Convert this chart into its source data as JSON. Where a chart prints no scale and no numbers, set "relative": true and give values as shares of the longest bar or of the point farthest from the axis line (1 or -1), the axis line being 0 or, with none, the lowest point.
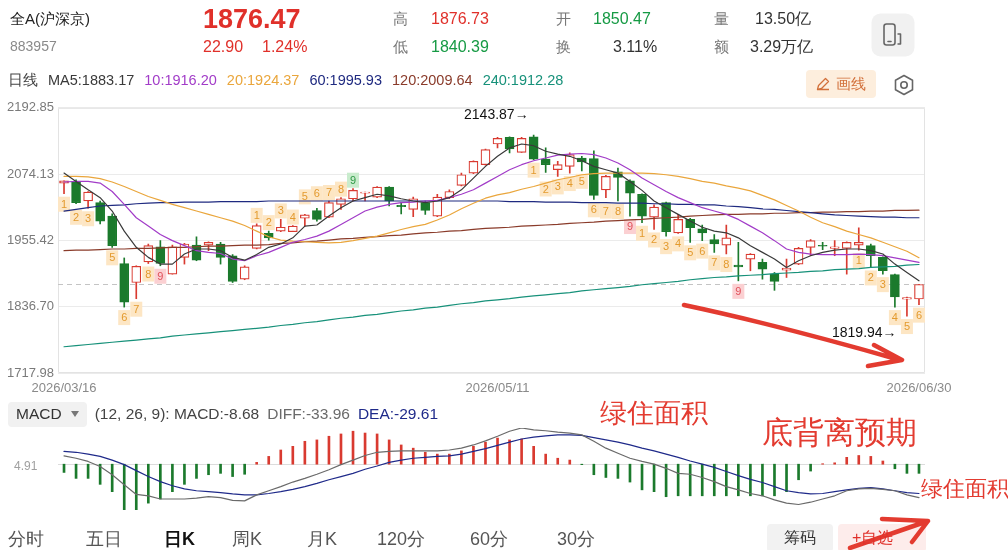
{
  "chart_data": [
    {
      "type": "other",
      "title": "全A(沪深京)",
      "subtitle": "883957",
      "annotations": [
        "1876.47",
        "22.90",
        "1.24%",
        "高",
        "1876.73",
        "低",
        "1840.39",
        "开",
        "1850.47",
        "换",
        "3.11%",
        "量",
        "13.50亿",
        "额",
        "3.29万亿",
        "画线"
      ]
    },
    {
      "type": "candlestick",
      "categories": [
        "2026/03/16",
        null,
        null,
        null,
        null,
        null,
        null,
        null,
        null,
        null,
        null,
        null,
        null,
        null,
        null,
        null,
        null,
        null,
        null,
        null,
        null,
        null,
        null,
        null,
        null,
        null,
        null,
        null,
        null,
        null,
        null,
        null,
        null,
        null,
        null,
        null,
        "2026/05/11",
        null,
        null,
        null,
        null,
        null,
        null,
        null,
        null,
        null,
        null,
        null,
        null,
        null,
        null,
        null,
        null,
        null,
        null,
        null,
        null,
        null,
        null,
        null,
        null,
        null,
        null,
        null,
        null,
        null,
        null,
        null,
        null,
        null,
        null,
        "2026/06/30"
      ],
      "ohlc": [
        [
          2058,
          2062,
          2039,
          2062
        ],
        [
          2061,
          2064,
          2021,
          2023
        ],
        [
          2026,
          2043,
          2013,
          2042
        ],
        [
          2023,
          2026,
          1985,
          1990
        ],
        [
          1999,
          2003,
          1943,
          1946
        ],
        [
          1914,
          1924,
          1836,
          1845
        ],
        [
          1880,
          1910,
          1851,
          1909
        ],
        [
          1917,
          1949,
          1914,
          1946
        ],
        [
          1944,
          1955,
          1910,
          1914
        ],
        [
          1895,
          1947,
          1895,
          1944
        ],
        [
          1925,
          1950,
          1913,
          1949
        ],
        [
          1947,
          1962,
          1919,
          1920
        ],
        [
          1947,
          1953,
          1937,
          1952
        ],
        [
          1949,
          1952,
          1913,
          1925
        ],
        [
          1928,
          1930,
          1880,
          1882
        ],
        [
          1886,
          1910,
          1885,
          1908
        ],
        [
          1941,
          1985,
          1940,
          1982
        ],
        [
          1968,
          1972,
          1956,
          1960
        ],
        [
          1972,
          1993,
          1971,
          1979
        ],
        [
          1971,
          1982,
          1971,
          1981
        ],
        [
          1995,
          2002,
          1981,
          2001
        ],
        [
          2009,
          2013,
          1990,
          1993
        ],
        [
          1997,
          2026,
          1996,
          2023
        ],
        [
          2020,
          2032,
          2011,
          2030
        ],
        [
          2030,
          2048,
          2026,
          2045
        ],
        [
          2040,
          2042,
          2026,
          2042
        ],
        [
          2033,
          2052,
          2032,
          2051
        ],
        [
          2051,
          2052,
          2017,
          2026
        ],
        [
          2018,
          2023,
          2003,
          2016
        ],
        [
          2011,
          2033,
          1998,
          2030
        ],
        [
          2023,
          2026,
          2002,
          2009
        ],
        [
          1999,
          2038,
          1998,
          2033
        ],
        [
          2032,
          2046,
          2030,
          2043
        ],
        [
          2054,
          2076,
          2053,
          2073
        ],
        [
          2076,
          2098,
          2075,
          2097
        ],
        [
          2091,
          2119,
          2090,
          2118
        ],
        [
          2128,
          2140,
          2121,
          2138
        ],
        [
          2140,
          2141,
          2112,
          2119
        ],
        [
          2113,
          2140,
          2113,
          2138
        ],
        [
          2141,
          2143.87,
          2100,
          2101
        ],
        [
          2101,
          2121,
          2077,
          2091
        ],
        [
          2082,
          2097,
          2070,
          2091
        ],
        [
          2088,
          2112,
          2076,
          2109
        ],
        [
          2103,
          2106,
          2080,
          2096
        ],
        [
          2102,
          2116,
          2029,
          2036
        ],
        [
          2046,
          2072,
          2032,
          2070
        ],
        [
          2078,
          2085,
          2026,
          2068
        ],
        [
          2062,
          2064,
          1999,
          2040
        ],
        [
          2038,
          2039,
          1987,
          1999
        ],
        [
          1997,
          2019,
          1975,
          2015
        ],
        [
          2023,
          2024,
          1963,
          1971
        ],
        [
          1969,
          2002,
          1968,
          1993
        ],
        [
          1993,
          1995,
          1952,
          1978
        ],
        [
          1976,
          1983,
          1955,
          1969
        ],
        [
          1957,
          1966,
          1934,
          1949
        ],
        [
          1947,
          1983,
          1931,
          1960
        ],
        [
          1911,
          1952,
          1883,
          1908
        ],
        [
          1922,
          1932,
          1901,
          1931
        ],
        [
          1916,
          1922,
          1886,
          1904
        ],
        [
          1895,
          1898,
          1866,
          1882
        ],
        [
          1902,
          1922,
          1889,
          1906
        ],
        [
          1913,
          1943,
          1912,
          1941
        ],
        [
          1943,
          1957,
          1928,
          1955
        ],
        [
          1946,
          1952,
          1939,
          1945
        ],
        [
          1941,
          1955,
          1928,
          1944
        ],
        [
          1941,
          1953,
          1895,
          1952
        ],
        [
          1947,
          1978,
          1938,
          1952
        ],
        [
          1946,
          1949,
          1907,
          1928
        ],
        [
          1925,
          1926,
          1895,
          1901
        ],
        [
          1894,
          1895,
          1836,
          1854
        ],
        [
          1850,
          1854,
          1819.94,
          1853
        ],
        [
          1850.47,
          1876.73,
          1840.39,
          1876.47
        ]
      ],
      "value_labels": [
        "1",
        "2",
        "3",
        null,
        "5",
        "6",
        "7",
        "8",
        "9",
        null,
        null,
        null,
        null,
        null,
        null,
        null,
        "1",
        "2",
        "3",
        "4",
        "5",
        "6",
        "7",
        "8",
        "9",
        null,
        null,
        null,
        null,
        null,
        null,
        null,
        null,
        null,
        null,
        null,
        null,
        null,
        null,
        "1",
        "2",
        "3",
        "4",
        "5",
        "6",
        "7",
        "8",
        "9",
        "1",
        "2",
        "3",
        "4",
        "5",
        "6",
        "7",
        "8",
        "9",
        null,
        null,
        null,
        null,
        null,
        null,
        null,
        null,
        null,
        "1",
        "2",
        "3",
        "4",
        "5",
        "6"
      ],
      "series": [
        {
          "name": "MA5:1883.17",
          "type": "line",
          "color": "#3a3a3a",
          "values": [
            2076,
            2061,
            2046,
            2032,
            2008,
            1972,
            1943,
            1925,
            1913,
            1913,
            1931,
            1940,
            1940,
            1937,
            1925,
            1920,
            1930,
            1943,
            1949,
            1960,
            1981,
            1983,
            1999,
            2014,
            2026,
            2032,
            2038,
            2035,
            2030,
            2026,
            2023,
            2026,
            2032,
            2046,
            2067,
            2088,
            2106,
            2121,
            2128,
            2125,
            2115,
            2110,
            2106,
            2098,
            2088,
            2082,
            2076,
            2061,
            2045,
            2026,
            2014,
            2002,
            1990,
            1979,
            1972,
            1969,
            1960,
            1946,
            1934,
            1922,
            1907,
            1919,
            1928,
            1934,
            1938,
            1940,
            1940,
            1937,
            1931,
            1913,
            1898,
            1883.17
          ]
        },
        {
          "name": "10:1916.20",
          "type": "line",
          "color": "#a23cc8",
          "values": [
            2060,
            2061,
            2061,
            2058,
            2043,
            2020,
            1996,
            1981,
            1966,
            1955,
            1946,
            1937,
            1934,
            1932,
            1922,
            1919,
            1928,
            1934,
            1943,
            1952,
            1957,
            1963,
            1972,
            1984,
            1996,
            2008,
            2015,
            2020,
            2023,
            2024,
            2026,
            2027,
            2032,
            2038,
            2046,
            2058,
            2070,
            2082,
            2091,
            2098,
            2103,
            2108,
            2110,
            2111,
            2109,
            2103,
            2094,
            2082,
            2067,
            2055,
            2043,
            2032,
            2023,
            2014,
            2008,
            2002,
            1993,
            1981,
            1969,
            1955,
            1940,
            1934,
            1931,
            1930,
            1930,
            1930,
            1931,
            1930,
            1928,
            1924,
            1920,
            1916.2
          ]
        },
        {
          "name": "20:1924.37",
          "type": "line",
          "color": "#eaa63c",
          "values": [
            2070,
            2070,
            2069,
            2066,
            2060,
            2052,
            2043,
            2034,
            2027,
            2020,
            2014,
            2008,
            2002,
            1996,
            1990,
            1982,
            1972,
            1962,
            1956,
            1954,
            1953,
            1952,
            1951,
            1952,
            1955,
            1959,
            1963,
            1969,
            1975,
            1980,
            1984,
            1992,
            2001,
            2012,
            2022,
            2031,
            2037,
            2041,
            2047,
            2052,
            2058,
            2064,
            2068,
            2073,
            2075,
            2076,
            2076,
            2076,
            2076,
            2075,
            2073,
            2070,
            2066,
            2061,
            2058,
            2053,
            2049,
            2044,
            2036,
            2028,
            2018,
            2008,
            1997,
            1987,
            1980,
            1972,
            1966,
            1960,
            1952,
            1944,
            1936,
            1924.37
          ]
        },
        {
          "name": "60:1995.93",
          "type": "line",
          "color": "#1f2a80",
          "values": [
            2008,
            2011,
            2014,
            2017,
            2018,
            2019,
            2021,
            2022,
            2023,
            2023,
            2024,
            2024,
            2024,
            2025,
            2025,
            2025,
            2025,
            2026,
            2026,
            2026,
            2026,
            2026,
            2026,
            2026,
            2026,
            2026,
            2026,
            2026,
            2026,
            2026,
            2026,
            2026,
            2026,
            2026,
            2026,
            2026,
            2026,
            2025,
            2025,
            2025,
            2024,
            2024,
            2024,
            2023,
            2023,
            2023,
            2022,
            2022,
            2022,
            2021,
            2021,
            2020,
            2020,
            2019,
            2019,
            2017,
            2016,
            2014,
            2012,
            2011,
            2009,
            2007,
            2005,
            2003,
            2001,
            2000,
            1999,
            1998,
            1997,
            1997,
            1996,
            1995.93
          ]
        },
        {
          "name": "120:2009.64",
          "type": "line",
          "color": "#8a3b2a",
          "values": [
            1937,
            1938,
            1938,
            1939,
            1940,
            1940,
            1941,
            1941,
            1942,
            1943,
            1943,
            1944,
            1945,
            1945,
            1946,
            1947,
            1947,
            1948,
            1950,
            1951,
            1953,
            1954,
            1956,
            1958,
            1959,
            1961,
            1962,
            1964,
            1965,
            1967,
            1969,
            1970,
            1972,
            1973,
            1975,
            1977,
            1978,
            1979,
            1981,
            1982,
            1983,
            1984,
            1986,
            1987,
            1988,
            1990,
            1991,
            1992,
            1993,
            1995,
            1996,
            1997,
            1999,
            2000,
            2001,
            2002,
            2002,
            2003,
            2003,
            2004,
            2004,
            2005,
            2005,
            2006,
            2006,
            2007,
            2007,
            2008,
            2008,
            2009,
            2009,
            2009.64
          ]
        },
        {
          "name": "240:1912.28",
          "type": "line",
          "color": "#17917a",
          "values": [
            1765,
            1767,
            1769,
            1771,
            1773,
            1775,
            1777,
            1779,
            1781,
            1784,
            1786,
            1788,
            1790,
            1792,
            1794,
            1796,
            1798,
            1800,
            1803,
            1805,
            1808,
            1810,
            1813,
            1816,
            1818,
            1821,
            1823,
            1826,
            1829,
            1831,
            1834,
            1836,
            1839,
            1842,
            1844,
            1847,
            1849,
            1851,
            1854,
            1856,
            1858,
            1860,
            1862,
            1865,
            1867,
            1869,
            1871,
            1873,
            1876,
            1878,
            1880,
            1882,
            1885,
            1887,
            1889,
            1890,
            1892,
            1893,
            1894,
            1896,
            1897,
            1898,
            1900,
            1901,
            1903,
            1904,
            1905,
            1907,
            1908,
            1909,
            1911,
            1912.28
          ]
        }
      ],
      "legend": "top left",
      "legend_title": "日线",
      "ylim": [
        1717.98,
        2192.85
      ],
      "yticks": [
        1717.98,
        {
          "value": 1836.7,
          "label": "1836.70"
        },
        1955.42,
        2074.13,
        2192.85
      ],
      "grid": "y",
      "ref_lines": [
        {
          "axis": "y",
          "value": 1876.47,
          "line_style": "dashed",
          "color": "#c4c4c4"
        }
      ],
      "annotations": [
        {
          "text": "2143.87→",
          "y": 2143.87
        },
        "1819.94→"
      ]
    },
    {
      "type": "bar",
      "title": "MACD",
      "legend_title": "(12, 26, 9): MACD:-8.68",
      "legend": "top left",
      "relative": true,
      "categories": [
        null,
        null,
        null,
        null,
        null,
        null,
        null,
        null,
        null,
        null,
        null,
        null,
        null,
        null,
        null,
        null,
        null,
        null,
        null,
        null,
        null,
        null,
        null,
        null,
        null,
        null,
        null,
        null,
        null,
        null,
        null,
        null,
        null,
        null,
        null,
        null,
        null,
        null,
        null,
        null,
        null,
        null,
        null,
        null,
        null,
        null,
        null,
        null,
        null,
        null,
        null,
        null,
        null,
        null,
        null,
        null,
        null,
        null,
        null,
        null,
        null,
        null,
        null,
        null,
        null,
        null,
        null,
        null,
        null,
        null,
        null,
        null
      ],
      "series": [
        {
          "type": "bar",
          "values": [
            -0.18,
            -0.31,
            -0.31,
            -0.44,
            -0.6,
            -1,
            -1,
            -0.85,
            -0.76,
            -0.6,
            -0.44,
            -0.31,
            -0.23,
            -0.2,
            -0.27,
            -0.22,
            0.04,
            0.17,
            0.31,
            0.39,
            0.5,
            0.53,
            0.61,
            0.66,
            0.72,
            0.68,
            0.66,
            0.53,
            0.42,
            0.35,
            0.26,
            0.22,
            0.22,
            0.29,
            0.39,
            0.48,
            0.57,
            0.53,
            0.55,
            0.39,
            0.22,
            0.13,
            0.09,
            -0.01,
            -0.23,
            -0.29,
            -0.31,
            -0.39,
            -0.56,
            -0.6,
            -0.71,
            -0.69,
            -0.69,
            -0.69,
            -0.69,
            -0.69,
            -0.69,
            -0.69,
            -0.69,
            -0.69,
            -0.6,
            -0.34,
            -0.15,
            0.01,
            0.03,
            0.15,
            0.19,
            0.17,
            0.07,
            -0.1,
            -0.2,
            -0.2
          ],
          "colors": [
            "#1b7a2c",
            "#1b7a2c",
            "#1b7a2c",
            "#1b7a2c",
            "#1b7a2c",
            "#1b7a2c",
            "#1b7a2c",
            "#1b7a2c",
            "#1b7a2c",
            "#1b7a2c",
            "#1b7a2c",
            "#1b7a2c",
            "#1b7a2c",
            "#1b7a2c",
            "#1b7a2c",
            "#1b7a2c",
            "#d93a30",
            "#d93a30",
            "#d93a30",
            "#d93a30",
            "#d93a30",
            "#d93a30",
            "#d93a30",
            "#d93a30",
            "#d93a30",
            "#d93a30",
            "#d93a30",
            "#d93a30",
            "#d93a30",
            "#d93a30",
            "#d93a30",
            "#d93a30",
            "#d93a30",
            "#d93a30",
            "#d93a30",
            "#d93a30",
            "#d93a30",
            "#d93a30",
            "#d93a30",
            "#d93a30",
            "#d93a30",
            "#d93a30",
            "#d93a30",
            "#1b7a2c",
            "#1b7a2c",
            "#1b7a2c",
            "#1b7a2c",
            "#1b7a2c",
            "#1b7a2c",
            "#1b7a2c",
            "#1b7a2c",
            "#1b7a2c",
            "#1b7a2c",
            "#1b7a2c",
            "#1b7a2c",
            "#1b7a2c",
            "#1b7a2c",
            "#1b7a2c",
            "#1b7a2c",
            "#1b7a2c",
            "#1b7a2c",
            "#1b7a2c",
            "#1b7a2c",
            "#d93a30",
            "#d93a30",
            "#d93a30",
            "#d93a30",
            "#d93a30",
            "#d93a30",
            "#1b7a2c",
            "#1b7a2c",
            "#1b7a2c"
          ]
        },
        {
          "name": "DIFF:-33.96",
          "type": "line",
          "color": "#6a6a6a",
          "values": [
            0.18,
            0.13,
            0.06,
            -0.05,
            -0.23,
            -0.45,
            -0.66,
            -0.69,
            -0.76,
            -0.76,
            -0.76,
            -0.74,
            -0.71,
            -0.73,
            -0.79,
            -0.8,
            -0.67,
            -0.58,
            -0.49,
            -0.39,
            -0.31,
            -0.22,
            -0.12,
            -0.01,
            0.09,
            0.19,
            0.26,
            0.28,
            0.29,
            0.29,
            0.29,
            0.29,
            0.31,
            0.35,
            0.42,
            0.51,
            0.61,
            0.72,
            0.79,
            0.75,
            0.73,
            0.7,
            0.68,
            0.64,
            0.5,
            0.35,
            0.24,
            0.13,
            0.06,
            0,
            -0.09,
            -0.2,
            -0.22,
            -0.29,
            -0.38,
            -0.49,
            -0.56,
            -0.64,
            -0.69,
            -0.78,
            -0.85,
            -0.88,
            -0.83,
            -0.76,
            -0.69,
            -0.58,
            -0.54,
            -0.53,
            -0.55,
            -0.58,
            -0.67,
            -0.73
          ]
        },
        {
          "name": "DEA:-29.61",
          "type": "line",
          "color": "#1f2a8a",
          "values": [
            0.28,
            0.26,
            0.22,
            0.17,
            0.09,
            -0.01,
            -0.14,
            -0.27,
            -0.38,
            -0.47,
            -0.54,
            -0.58,
            -0.6,
            -0.62,
            -0.65,
            -0.67,
            -0.67,
            -0.64,
            -0.6,
            -0.55,
            -0.49,
            -0.42,
            -0.34,
            -0.27,
            -0.2,
            -0.11,
            -0.04,
            0.04,
            0.09,
            0.13,
            0.15,
            0.17,
            0.18,
            0.22,
            0.28,
            0.34,
            0.41,
            0.48,
            0.55,
            0.59,
            0.62,
            0.64,
            0.64,
            0.63,
            0.58,
            0.53,
            0.48,
            0.42,
            0.35,
            0.29,
            0.22,
            0.15,
            0.07,
            0,
            -0.07,
            -0.16,
            -0.25,
            -0.33,
            -0.4,
            -0.49,
            -0.58,
            -0.62,
            -0.65,
            -0.64,
            -0.6,
            -0.56,
            -0.53,
            -0.51,
            -0.54,
            -0.58,
            -0.62,
            -0.64
          ]
        }
      ],
      "annotations": [
        "4.91",
        "绿住面积",
        "底背离预期",
        "绿住面积"
      ]
    },
    {
      "type": "other",
      "annotations": [
        "分时",
        "五日",
        "日K",
        "周K",
        "月K",
        "120分",
        "60分",
        "30分",
        "筹码",
        "+自选"
      ]
    }
  ]
}
